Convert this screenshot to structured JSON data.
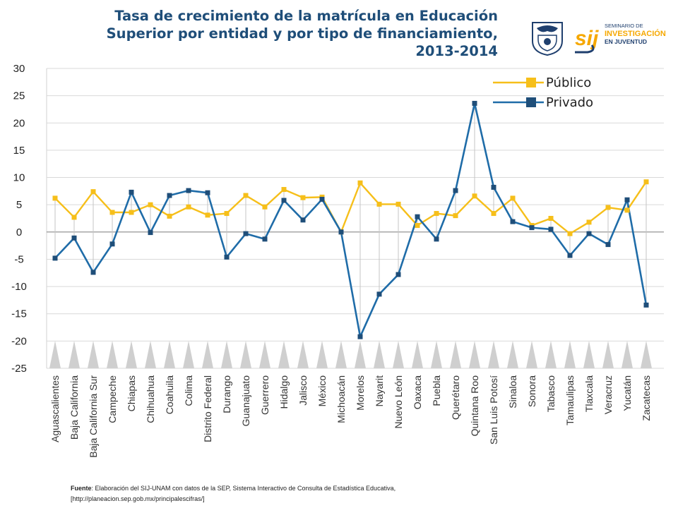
{
  "title_lines": [
    "Tasa de crecimiento de la matrícula en Educación",
    "Superior por entidad y por tipo de financiamiento,",
    "2013-2014"
  ],
  "logo": {
    "line1": "SEMINARIO DE",
    "line2": "INVESTIGACIÓN",
    "line3": "EN JUVENTUD",
    "mark": "sij"
  },
  "footer": {
    "label": "Fuente",
    "text": ": Elaboración del SIJ-UNAM con datos de la SEP, Sistema Interactivo de Consulta de Estadística Educativa,",
    "line2": "[http://planeacion.sep.gob.mx/principalescifras/]"
  },
  "colors": {
    "publico": "#f6bf1a",
    "privado": "#1f6ca8",
    "title": "#1f4e79",
    "grid": "#d9d9d9"
  },
  "chart_data": {
    "type": "line",
    "title": "Tasa de crecimiento de la matrícula en Educación Superior por entidad y por tipo de financiamiento, 2013-2014",
    "ylim": [
      -25,
      30
    ],
    "yticks": [
      30,
      25,
      20,
      15,
      10,
      5,
      0,
      -5,
      -10,
      -15,
      -20,
      -25
    ],
    "ytick_labels": [
      "30",
      "25",
      "20",
      "15",
      "10",
      "5",
      "0",
      "-5",
      "-10",
      "-15",
      "-20",
      "-25"
    ],
    "legend_position": "top-right",
    "categories": [
      "Aguascalientes",
      "Baja California",
      "Baja California Sur",
      "Campeche",
      "Chiapas",
      "Chihuahua",
      "Coahuila",
      "Colima",
      "Distrito Federal",
      "Durango",
      "Guanajuato",
      "Guerrero",
      "Hidalgo",
      "Jalisco",
      "México",
      "Michoacán",
      "Morelos",
      "Nayarit",
      "Nuevo León",
      "Oaxaca",
      "Puebla",
      "Querétaro",
      "Quintana Roo",
      "San Luis Potosí",
      "Sinaloa",
      "Sonora",
      "Tabasco",
      "Tamaulipas",
      "Tlaxcala",
      "Veracruz",
      "Yucatán",
      "Zacatecas"
    ],
    "series": [
      {
        "name": "Público",
        "color": "#f6bf1a",
        "values": [
          6.2,
          2.7,
          7.4,
          3.6,
          3.6,
          5.0,
          2.9,
          4.6,
          3.1,
          3.4,
          6.7,
          4.6,
          7.8,
          6.3,
          6.4,
          0.0,
          9.0,
          5.1,
          5.1,
          1.2,
          3.4,
          3.0,
          6.6,
          3.4,
          6.2,
          1.2,
          2.5,
          -0.3,
          1.8,
          4.5,
          4.0,
          9.2
        ]
      },
      {
        "name": "Privado",
        "color": "#1f6ca8",
        "values": [
          -4.8,
          -1.1,
          -7.4,
          -2.2,
          7.3,
          -0.1,
          6.7,
          7.6,
          7.2,
          -4.6,
          -0.3,
          -1.3,
          5.8,
          2.2,
          6.0,
          0.0,
          -19.2,
          -11.4,
          -7.8,
          2.8,
          -1.3,
          7.6,
          23.6,
          8.2,
          1.9,
          0.8,
          0.5,
          -4.3,
          -0.3,
          -2.3,
          5.9,
          -13.4
        ]
      }
    ]
  }
}
